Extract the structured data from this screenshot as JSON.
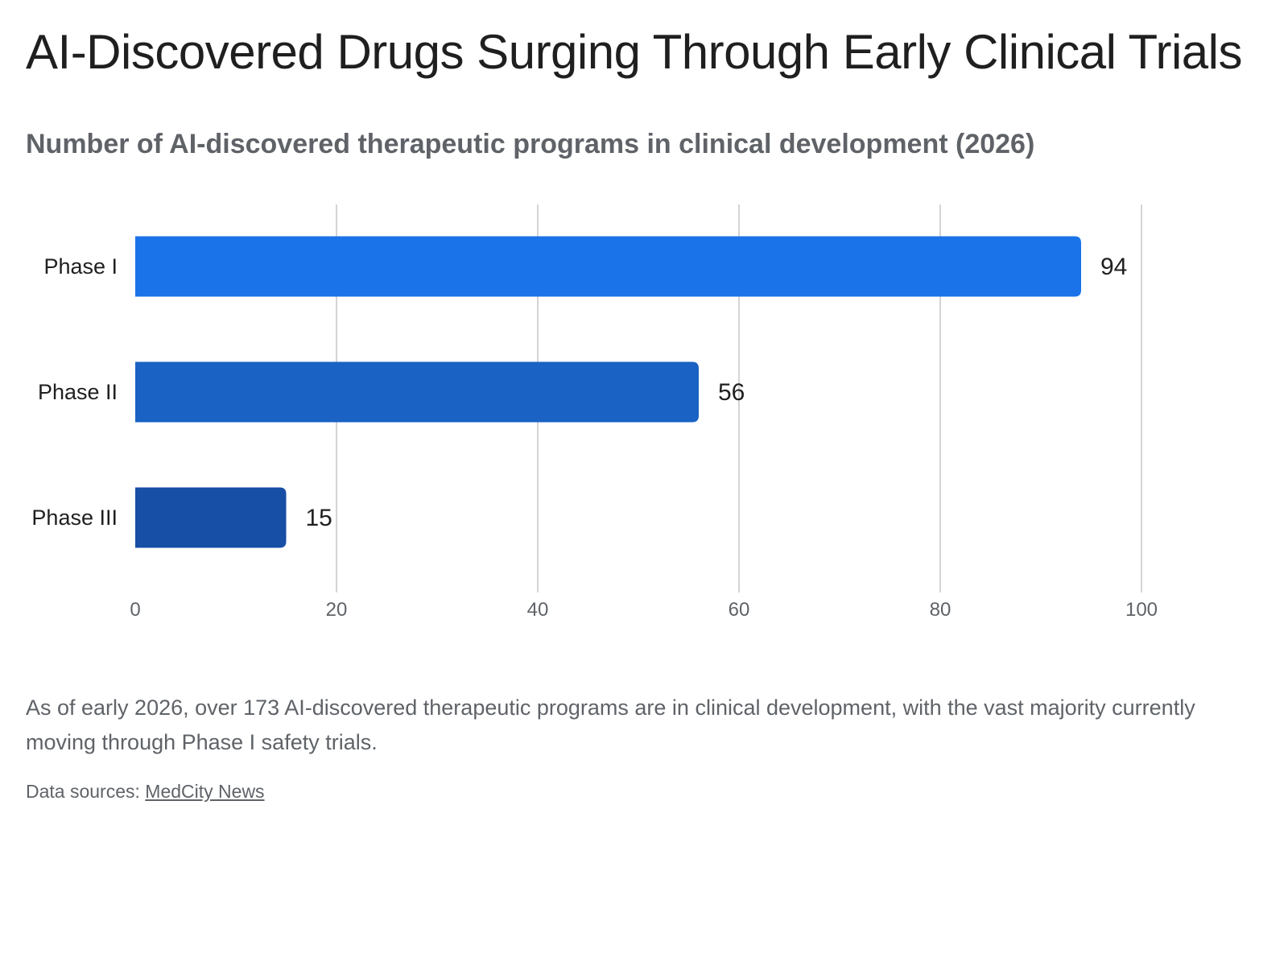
{
  "header": {
    "title": "AI-Discovered Drugs Surging Through Early Clinical Trials",
    "subtitle": "Number of AI-discovered therapeutic programs in clinical development (2026)"
  },
  "chart_data": {
    "type": "bar",
    "orientation": "horizontal",
    "categories": [
      "Phase I",
      "Phase II",
      "Phase III"
    ],
    "values": [
      94,
      56,
      15
    ],
    "value_labels": [
      "94",
      "56",
      "15"
    ],
    "bar_colors": [
      "#1a73e8",
      "#1a62c4",
      "#174ea6"
    ],
    "xlim": [
      0,
      100
    ],
    "x_ticks": [
      0,
      20,
      40,
      60,
      80,
      100
    ],
    "grid": true,
    "xlabel": "",
    "ylabel": ""
  },
  "footer": {
    "description": "As of early 2026, over 173 AI-discovered therapeutic programs are in clinical development, with the vast majority currently moving through Phase I safety trials.",
    "sources_label": "Data sources:",
    "sources_link": "MedCity News"
  }
}
